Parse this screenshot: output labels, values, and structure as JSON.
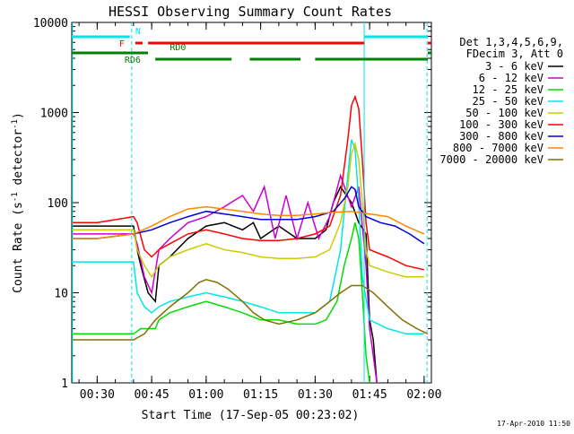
{
  "chart_data": {
    "type": "line",
    "title": "HESSI Observing Summary Count Rates",
    "xlabel": "Start Time (17-Sep-05 00:23:02)",
    "ylabel": "Count Rate (s⁻¹ detector⁻¹)",
    "ylabel_main": "Count Rate (s",
    "ylabel_sup1": "-1",
    "ylabel_mid": " detector",
    "ylabel_sup2": "-1",
    "ylabel_end": ")",
    "yscale": "log",
    "ylim": [
      1,
      10000
    ],
    "xlim_minutes": [
      23,
      122
    ],
    "x_ticks": [
      {
        "m": 30,
        "label": "00:30"
      },
      {
        "m": 45,
        "label": "00:45"
      },
      {
        "m": 60,
        "label": "01:00"
      },
      {
        "m": 75,
        "label": "01:15"
      },
      {
        "m": 90,
        "label": "01:30"
      },
      {
        "m": 105,
        "label": "01:45"
      },
      {
        "m": 120,
        "label": "02:00"
      }
    ],
    "y_ticks": [
      {
        "v": 1,
        "label": "1"
      },
      {
        "v": 10,
        "label": "10"
      },
      {
        "v": 100,
        "label": "100"
      },
      {
        "v": 1000,
        "label": "1000"
      },
      {
        "v": 10000,
        "label": "10000"
      }
    ],
    "legend_header": [
      "Det 1,3,4,5,6,9,",
      "FDecim 3, Att 0"
    ],
    "legend_position": "right",
    "series": [
      {
        "name": "3 - 6 keV",
        "color": "#000000",
        "points": [
          [
            23,
            55
          ],
          [
            30,
            55
          ],
          [
            40,
            55
          ],
          [
            41,
            30
          ],
          [
            42,
            20
          ],
          [
            44,
            10
          ],
          [
            46,
            8
          ],
          [
            47,
            20
          ],
          [
            50,
            25
          ],
          [
            55,
            40
          ],
          [
            60,
            55
          ],
          [
            65,
            60
          ],
          [
            70,
            50
          ],
          [
            73,
            60
          ],
          [
            75,
            40
          ],
          [
            80,
            55
          ],
          [
            85,
            40
          ],
          [
            90,
            40
          ],
          [
            93,
            50
          ],
          [
            95,
            100
          ],
          [
            97,
            150
          ],
          [
            100,
            100
          ],
          [
            102,
            60
          ],
          [
            104,
            45
          ],
          [
            105,
            5
          ],
          [
            106,
            3
          ],
          [
            107,
            1
          ]
        ]
      },
      {
        "name": "6 - 12 keV",
        "color": "#cc00cc",
        "points": [
          [
            23,
            45
          ],
          [
            30,
            45
          ],
          [
            40,
            45
          ],
          [
            41,
            35
          ],
          [
            43,
            15
          ],
          [
            45,
            10
          ],
          [
            47,
            30
          ],
          [
            50,
            40
          ],
          [
            55,
            60
          ],
          [
            60,
            70
          ],
          [
            65,
            90
          ],
          [
            70,
            120
          ],
          [
            73,
            80
          ],
          [
            76,
            150
          ],
          [
            79,
            40
          ],
          [
            82,
            120
          ],
          [
            85,
            40
          ],
          [
            88,
            100
          ],
          [
            91,
            40
          ],
          [
            94,
            70
          ],
          [
            97,
            200
          ],
          [
            100,
            90
          ],
          [
            102,
            150
          ],
          [
            104,
            20
          ],
          [
            105,
            4
          ],
          [
            106,
            2
          ],
          [
            107,
            1
          ]
        ]
      },
      {
        "name": "12 - 25 keV",
        "color": "#00dd00",
        "points": [
          [
            23,
            3.5
          ],
          [
            30,
            3.5
          ],
          [
            40,
            3.5
          ],
          [
            42,
            4
          ],
          [
            46,
            4
          ],
          [
            47,
            5
          ],
          [
            50,
            6
          ],
          [
            55,
            7
          ],
          [
            60,
            8
          ],
          [
            65,
            7
          ],
          [
            70,
            6
          ],
          [
            75,
            5
          ],
          [
            80,
            5
          ],
          [
            85,
            4.5
          ],
          [
            90,
            4.5
          ],
          [
            93,
            5
          ],
          [
            96,
            8
          ],
          [
            98,
            20
          ],
          [
            100,
            40
          ],
          [
            101,
            60
          ],
          [
            102,
            40
          ],
          [
            103,
            10
          ],
          [
            104,
            2
          ],
          [
            105,
            1
          ]
        ]
      },
      {
        "name": "25 - 50 keV",
        "color": "#00e5e5",
        "points": [
          [
            23,
            22
          ],
          [
            30,
            22
          ],
          [
            40,
            22
          ],
          [
            41,
            10
          ],
          [
            43,
            7
          ],
          [
            45,
            6
          ],
          [
            47,
            7
          ],
          [
            50,
            8
          ],
          [
            55,
            9
          ],
          [
            60,
            10
          ],
          [
            65,
            9
          ],
          [
            70,
            8
          ],
          [
            75,
            7
          ],
          [
            80,
            6
          ],
          [
            85,
            6
          ],
          [
            90,
            6
          ],
          [
            94,
            8
          ],
          [
            97,
            30
          ],
          [
            99,
            200
          ],
          [
            100,
            500
          ],
          [
            101,
            400
          ],
          [
            102,
            100
          ],
          [
            103,
            15
          ],
          [
            105,
            5
          ],
          [
            110,
            4
          ],
          [
            115,
            3.5
          ],
          [
            120,
            3.5
          ]
        ]
      },
      {
        "name": "50 - 100 keV",
        "color": "#cccc00",
        "points": [
          [
            23,
            50
          ],
          [
            30,
            50
          ],
          [
            40,
            50
          ],
          [
            41,
            30
          ],
          [
            43,
            20
          ],
          [
            45,
            15
          ],
          [
            47,
            20
          ],
          [
            50,
            25
          ],
          [
            55,
            30
          ],
          [
            60,
            35
          ],
          [
            65,
            30
          ],
          [
            70,
            28
          ],
          [
            75,
            25
          ],
          [
            80,
            24
          ],
          [
            85,
            24
          ],
          [
            90,
            25
          ],
          [
            94,
            30
          ],
          [
            97,
            60
          ],
          [
            99,
            150
          ],
          [
            100,
            350
          ],
          [
            101,
            450
          ],
          [
            102,
            300
          ],
          [
            103,
            100
          ],
          [
            104,
            30
          ],
          [
            105,
            20
          ],
          [
            110,
            17
          ],
          [
            115,
            15
          ],
          [
            120,
            15
          ]
        ]
      },
      {
        "name": "100 - 300 keV",
        "color": "#ff0000",
        "points": [
          [
            23,
            60
          ],
          [
            30,
            60
          ],
          [
            40,
            70
          ],
          [
            41,
            60
          ],
          [
            43,
            30
          ],
          [
            45,
            25
          ],
          [
            47,
            30
          ],
          [
            50,
            35
          ],
          [
            55,
            45
          ],
          [
            60,
            50
          ],
          [
            65,
            45
          ],
          [
            70,
            40
          ],
          [
            75,
            38
          ],
          [
            80,
            38
          ],
          [
            85,
            40
          ],
          [
            90,
            45
          ],
          [
            94,
            55
          ],
          [
            97,
            120
          ],
          [
            99,
            500
          ],
          [
            100,
            1200
          ],
          [
            101,
            1500
          ],
          [
            102,
            1100
          ],
          [
            103,
            300
          ],
          [
            104,
            60
          ],
          [
            105,
            30
          ],
          [
            110,
            25
          ],
          [
            115,
            20
          ],
          [
            120,
            18
          ]
        ]
      },
      {
        "name": "300 - 800 keV",
        "color": "#0000dd",
        "points": [
          [
            23,
            40
          ],
          [
            30,
            40
          ],
          [
            40,
            45
          ],
          [
            45,
            50
          ],
          [
            50,
            60
          ],
          [
            55,
            70
          ],
          [
            60,
            80
          ],
          [
            65,
            75
          ],
          [
            70,
            70
          ],
          [
            75,
            65
          ],
          [
            80,
            65
          ],
          [
            85,
            65
          ],
          [
            90,
            70
          ],
          [
            95,
            80
          ],
          [
            98,
            110
          ],
          [
            100,
            150
          ],
          [
            101,
            140
          ],
          [
            102,
            90
          ],
          [
            104,
            70
          ],
          [
            108,
            60
          ],
          [
            112,
            55
          ],
          [
            116,
            45
          ],
          [
            120,
            35
          ]
        ]
      },
      {
        "name": "800 - 7000 keV",
        "color": "#ff8800",
        "points": [
          [
            23,
            40
          ],
          [
            30,
            40
          ],
          [
            40,
            45
          ],
          [
            45,
            55
          ],
          [
            50,
            70
          ],
          [
            55,
            85
          ],
          [
            60,
            90
          ],
          [
            65,
            85
          ],
          [
            70,
            80
          ],
          [
            75,
            75
          ],
          [
            80,
            72
          ],
          [
            85,
            72
          ],
          [
            90,
            75
          ],
          [
            95,
            78
          ],
          [
            100,
            80
          ],
          [
            105,
            75
          ],
          [
            110,
            70
          ],
          [
            115,
            55
          ],
          [
            120,
            45
          ]
        ]
      },
      {
        "name": "7000 - 20000 keV",
        "color": "#807000",
        "points": [
          [
            23,
            3
          ],
          [
            30,
            3
          ],
          [
            40,
            3
          ],
          [
            43,
            3.5
          ],
          [
            46,
            5
          ],
          [
            50,
            7
          ],
          [
            55,
            10
          ],
          [
            58,
            13
          ],
          [
            60,
            14
          ],
          [
            63,
            13
          ],
          [
            66,
            11
          ],
          [
            70,
            8
          ],
          [
            73,
            6
          ],
          [
            76,
            5
          ],
          [
            80,
            4.5
          ],
          [
            85,
            5
          ],
          [
            90,
            6
          ],
          [
            94,
            8
          ],
          [
            97,
            10
          ],
          [
            100,
            12
          ],
          [
            103,
            12
          ],
          [
            106,
            10
          ],
          [
            110,
            7
          ],
          [
            114,
            5
          ],
          [
            118,
            4
          ],
          [
            121,
            3.5
          ]
        ]
      }
    ],
    "vertical_markers": [
      {
        "m": 23.2,
        "style": "solid"
      },
      {
        "m": 39.5,
        "style": "dashed"
      },
      {
        "m": 103.5,
        "style": "solid"
      },
      {
        "m": 120.8,
        "style": "dashed"
      }
    ],
    "flags": [
      {
        "label": "N",
        "color": "#00e5e5",
        "segments": [
          [
            23,
            39
          ],
          [
            103.5,
            121
          ]
        ],
        "level": 1,
        "label_m": 40.5,
        "label_side": "above"
      },
      {
        "label": "F",
        "color": "#ff0000",
        "segments": [
          [
            40.5,
            42.5
          ],
          [
            44,
            103.5
          ],
          [
            121,
            122
          ]
        ],
        "level": 2,
        "label_m": 37.5,
        "label_side": "left"
      },
      {
        "label": "RD0",
        "color": "#008000",
        "segments": [
          [
            23,
            44
          ],
          [
            121,
            122
          ]
        ],
        "level": 3,
        "label_m": 50,
        "label_side": "above"
      },
      {
        "label": "RD6",
        "color": "#008000",
        "segments": [
          [
            46,
            67
          ],
          [
            72,
            86
          ],
          [
            90,
            121
          ]
        ],
        "level": 4,
        "label_m": 42,
        "label_side": "left"
      }
    ]
  },
  "footer": {
    "timestamp": "17-Apr-2010 11:50"
  }
}
